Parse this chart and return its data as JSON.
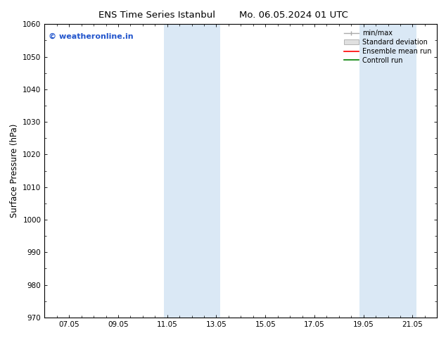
{
  "title_left": "ENS Time Series Istanbul",
  "title_right": "Mo. 06.05.2024 01 UTC",
  "ylabel": "Surface Pressure (hPa)",
  "ylim": [
    970,
    1060
  ],
  "yticks": [
    970,
    980,
    990,
    1000,
    1010,
    1020,
    1030,
    1040,
    1050,
    1060
  ],
  "xticks_labels": [
    "07.05",
    "09.05",
    "11.05",
    "13.05",
    "15.05",
    "17.05",
    "19.05",
    "21.05"
  ],
  "xticks_positions": [
    1,
    3,
    5,
    7,
    9,
    11,
    13,
    15
  ],
  "xlim": [
    0,
    16
  ],
  "shaded_bands": [
    {
      "x_start": 4.85,
      "x_end": 7.15,
      "color": "#dae8f5"
    },
    {
      "x_start": 12.85,
      "x_end": 15.15,
      "color": "#dae8f5"
    }
  ],
  "watermark_text": "© weatheronline.in",
  "watermark_color": "#2255cc",
  "bg_color": "#ffffff",
  "plot_bg_color": "#ffffff",
  "tick_label_fontsize": 7.5,
  "axis_label_fontsize": 8.5,
  "title_fontsize": 9.5,
  "legend_fontsize": 7,
  "minmax_color": "#aaaaaa",
  "stddev_color": "#cccccc",
  "ensemble_color": "red",
  "control_color": "green"
}
